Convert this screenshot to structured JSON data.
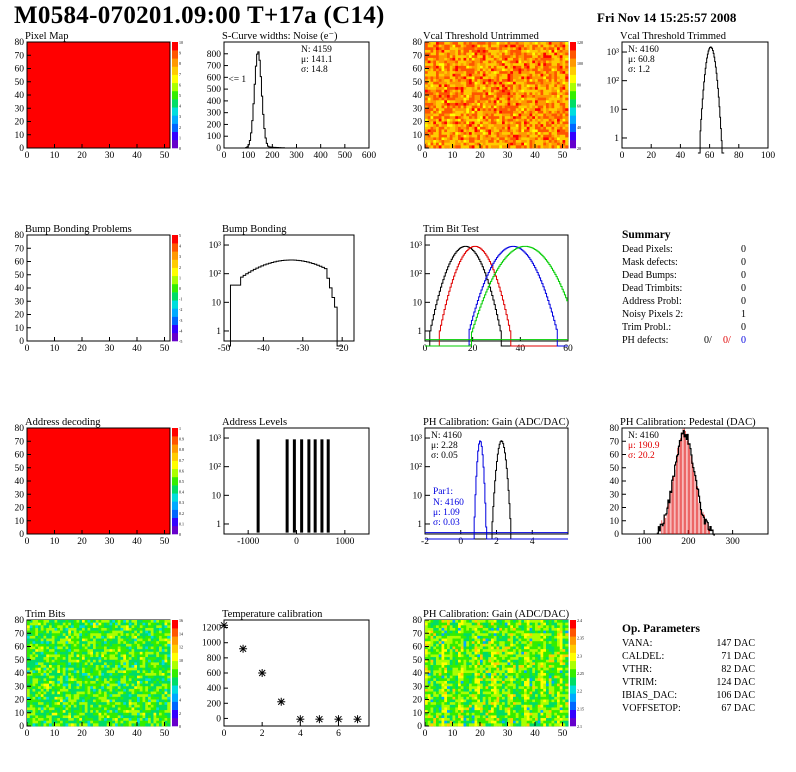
{
  "header": {
    "title": "M0584-070201.09:00 T+17a (C14)",
    "date": "Fri Nov 14 15:25:57 2008"
  },
  "colors": {
    "black": "#000000",
    "red": "#e00000",
    "blue": "#0000e0",
    "green": "#00cc00"
  },
  "chart_data": [
    {
      "id": "pixel-map",
      "type": "heatmap",
      "title": "Pixel Map",
      "x": [
        0,
        52
      ],
      "y": [
        0,
        80
      ],
      "fill": "uniform red",
      "xticks": [
        0,
        10,
        20,
        30,
        40,
        50
      ],
      "yticks": [
        0,
        10,
        20,
        30,
        40,
        50,
        60,
        70,
        80
      ],
      "zticks": [
        "10",
        "9",
        "8",
        "7",
        "6",
        "5",
        "4",
        "3",
        "2",
        "1",
        "0"
      ]
    },
    {
      "id": "scurve-widths",
      "type": "histogram",
      "title": "S-Curve widths: Noise (e⁻)",
      "xlim": [
        0,
        600
      ],
      "xticks": [
        0,
        100,
        200,
        300,
        400,
        500,
        600
      ],
      "ylim": [
        0,
        900
      ],
      "yticks": [
        0,
        100,
        200,
        300,
        400,
        500,
        600,
        700,
        800
      ],
      "stats": [
        "N: 4159",
        "μ: 141.1",
        "σ: 14.8"
      ],
      "annotation": "<= 1",
      "peak_x": 141,
      "peak_sigma": 14.8,
      "peak_y": 820
    },
    {
      "id": "vcal-untrimmed",
      "type": "heatmap",
      "title": "Vcal Threshold Untrimmed",
      "x": [
        0,
        52
      ],
      "y": [
        0,
        80
      ],
      "fill": "noisy orange/yellow",
      "xticks": [
        0,
        10,
        20,
        30,
        40,
        50
      ],
      "yticks": [
        0,
        10,
        20,
        30,
        40,
        50,
        60,
        70,
        80
      ],
      "zticks": [
        "120",
        "100",
        "80",
        "60",
        "40",
        "20"
      ]
    },
    {
      "id": "vcal-trimmed",
      "type": "histogram",
      "title": "Vcal Threshold Trimmed",
      "log": true,
      "xlim": [
        0,
        100
      ],
      "xticks": [
        0,
        20,
        40,
        60,
        80,
        100
      ],
      "yticks": [
        "1",
        "10",
        "10²",
        "10³"
      ],
      "stats": [
        "N: 4160",
        "μ: 60.8",
        "σ: 1.2"
      ],
      "peak_x": 60.8,
      "peak_sigma": 1.2,
      "peak_y": 1500
    },
    {
      "id": "bump-problems",
      "type": "heatmap",
      "title": "Bump Bonding Problems",
      "x": [
        0,
        52
      ],
      "y": [
        0,
        80
      ],
      "fill": "empty",
      "xticks": [
        0,
        10,
        20,
        30,
        40,
        50
      ],
      "yticks": [
        0,
        10,
        20,
        30,
        40,
        50,
        60,
        70,
        80
      ],
      "zticks": [
        "5",
        "4",
        "3",
        "2",
        "1",
        "0",
        "-1",
        "-2",
        "-3",
        "-4",
        "-5"
      ]
    },
    {
      "id": "bump-bonding",
      "type": "histogram",
      "title": "Bump Bonding",
      "log": true,
      "xlim": [
        -50,
        -17
      ],
      "xticks": [
        -50,
        -40,
        -30,
        -20
      ],
      "yticks": [
        "1",
        "10",
        "10²",
        "10³"
      ]
    },
    {
      "id": "trim-bit-test",
      "type": "histogram",
      "title": "Trim Bit Test",
      "log": true,
      "xlim": [
        0,
        60
      ],
      "xticks": [
        0,
        20,
        40,
        60
      ],
      "yticks": [
        "1",
        "10",
        "10²",
        "10³"
      ],
      "series": [
        {
          "color": "#000000",
          "center": 17,
          "width": 4
        },
        {
          "color": "#e00000",
          "center": 21,
          "width": 4
        },
        {
          "color": "#0000e0",
          "center": 37,
          "width": 5
        },
        {
          "color": "#00cc00",
          "center": 42,
          "width": 6
        }
      ]
    },
    {
      "id": "address-decoding",
      "type": "heatmap",
      "title": "Address decoding",
      "x": [
        0,
        52
      ],
      "y": [
        0,
        80
      ],
      "fill": "uniform red",
      "xticks": [
        0,
        10,
        20,
        30,
        40,
        50
      ],
      "yticks": [
        0,
        10,
        20,
        30,
        40,
        50,
        60,
        70,
        80
      ],
      "zticks": [
        "1",
        "0.9",
        "0.8",
        "0.7",
        "0.6",
        "0.5",
        "0.4",
        "0.3",
        "0.2",
        "0.1",
        "0"
      ]
    },
    {
      "id": "address-levels",
      "type": "histogram",
      "title": "Address Levels",
      "log": true,
      "xlim": [
        -1500,
        1500
      ],
      "xticks": [
        -1000,
        0,
        1000
      ],
      "yticks": [
        "1",
        "10",
        "10²",
        "10³"
      ],
      "levels": [
        -800,
        -200,
        -50,
        100,
        250,
        380,
        520,
        650
      ]
    },
    {
      "id": "ph-gain",
      "type": "histogram",
      "title": "PH Calibration: Gain (ADC/DAC)",
      "log": true,
      "xlim": [
        -2,
        6
      ],
      "xticks": [
        -2,
        0,
        2,
        4
      ],
      "yticks": [
        "1",
        "10",
        "10²",
        "10³"
      ],
      "stats": [
        "N: 4160",
        "μ: 2.28",
        "σ: 0.05"
      ],
      "stats2_title": "Par1:",
      "stats2": [
        "N: 4160",
        "μ: 1.09",
        "σ: 0.03"
      ],
      "series": [
        {
          "color": "#000000",
          "center": 2.28,
          "width": 0.14
        },
        {
          "color": "#0000e0",
          "center": 1.09,
          "width": 0.09
        }
      ]
    },
    {
      "id": "ph-pedestal",
      "type": "histogram",
      "title": "PH Calibration: Pedestal (DAC)",
      "xlim": [
        50,
        380
      ],
      "xticks": [
        100,
        200,
        300
      ],
      "ylim": [
        0,
        80
      ],
      "yticks": [
        0,
        10,
        20,
        30,
        40,
        50,
        60,
        70,
        80
      ],
      "stats": [
        "N: 4160"
      ],
      "stats_red": [
        "μ: 190.9",
        "σ: 20.2"
      ],
      "peak_x": 190.9,
      "peak_sigma": 20.2,
      "peak_y": 76
    },
    {
      "id": "trim-bits",
      "type": "heatmap",
      "title": "Trim Bits",
      "x": [
        0,
        52
      ],
      "y": [
        0,
        80
      ],
      "fill": "noisy green",
      "xticks": [
        0,
        10,
        20,
        30,
        40,
        50
      ],
      "yticks": [
        0,
        10,
        20,
        30,
        40,
        50,
        60,
        70,
        80
      ],
      "zticks": [
        "16",
        "14",
        "12",
        "10",
        "8",
        "6",
        "4",
        "2",
        "0"
      ]
    },
    {
      "id": "temperature-calibration",
      "type": "scatter",
      "title": "Temperature calibration",
      "xlim": [
        0,
        7.6
      ],
      "xticks": [
        0,
        2,
        4,
        6
      ],
      "ylim": [
        -100,
        1300
      ],
      "yticks": [
        0,
        200,
        400,
        600,
        800,
        1000,
        1200
      ],
      "points": [
        [
          0,
          1230
        ],
        [
          1,
          920
        ],
        [
          2,
          600
        ],
        [
          3,
          220
        ],
        [
          4,
          -10
        ],
        [
          5,
          -10
        ],
        [
          6,
          -10
        ],
        [
          7,
          -10
        ]
      ]
    },
    {
      "id": "ph-gain-map",
      "type": "heatmap",
      "title": "PH Calibration: Gain (ADC/DAC)",
      "x": [
        0,
        52
      ],
      "y": [
        0,
        80
      ],
      "fill": "noisy green, column striped",
      "xticks": [
        0,
        10,
        20,
        30,
        40,
        50
      ],
      "yticks": [
        0,
        10,
        20,
        30,
        40,
        50,
        60,
        70,
        80
      ],
      "zticks": [
        "2.4",
        "2.35",
        "2.3",
        "2.25",
        "2.2",
        "2.15",
        "2.1"
      ]
    }
  ],
  "summary": {
    "title": "Summary",
    "rows": [
      {
        "label": "Dead Pixels:",
        "value": "0"
      },
      {
        "label": "Mask defects:",
        "value": "0"
      },
      {
        "label": "Dead Bumps:",
        "value": "0"
      },
      {
        "label": "Dead Trimbits:",
        "value": "0"
      },
      {
        "label": "Address Probl:",
        "value": "0"
      },
      {
        "label": "Noisy Pixels 2:",
        "value": "1"
      },
      {
        "label": "Trim Probl.:",
        "value": "0"
      }
    ],
    "ph_label": "PH defects:",
    "ph_values": [
      "0/",
      "0/",
      "0"
    ]
  },
  "op_parameters": {
    "title": "Op. Parameters",
    "rows": [
      {
        "label": "VANA:",
        "value": "147 DAC"
      },
      {
        "label": "CALDEL:",
        "value": "71 DAC"
      },
      {
        "label": "VTHR:",
        "value": "82 DAC"
      },
      {
        "label": "VTRIM:",
        "value": "124 DAC"
      },
      {
        "label": "IBIAS_DAC:",
        "value": "106 DAC"
      },
      {
        "label": "VOFFSETOP:",
        "value": "67 DAC"
      }
    ]
  }
}
